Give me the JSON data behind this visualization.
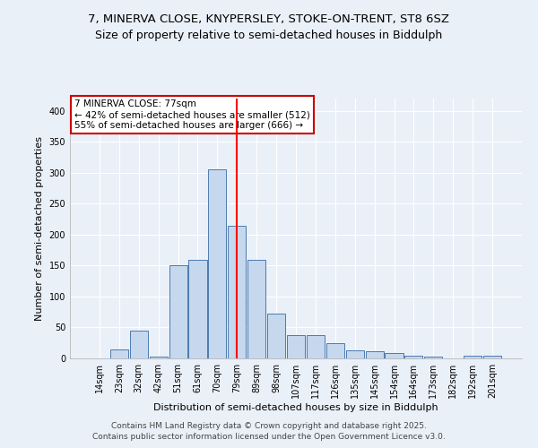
{
  "title1": "7, MINERVA CLOSE, KNYPERSLEY, STOKE-ON-TRENT, ST8 6SZ",
  "title2": "Size of property relative to semi-detached houses in Biddulph",
  "xlabel": "Distribution of semi-detached houses by size in Biddulph",
  "ylabel": "Number of semi-detached properties",
  "categories": [
    "14sqm",
    "23sqm",
    "32sqm",
    "42sqm",
    "51sqm",
    "61sqm",
    "70sqm",
    "79sqm",
    "89sqm",
    "98sqm",
    "107sqm",
    "117sqm",
    "126sqm",
    "135sqm",
    "145sqm",
    "154sqm",
    "164sqm",
    "173sqm",
    "182sqm",
    "192sqm",
    "201sqm"
  ],
  "values": [
    0,
    14,
    45,
    3,
    150,
    160,
    305,
    215,
    160,
    73,
    38,
    38,
    24,
    13,
    11,
    9,
    5,
    3,
    0,
    4,
    4
  ],
  "bar_color": "#c5d8ed",
  "bar_edge_color": "#4c7ab0",
  "red_line_x": 7.0,
  "annotation_title": "7 MINERVA CLOSE: 77sqm",
  "annotation_line1": "← 42% of semi-detached houses are smaller (512)",
  "annotation_line2": "55% of semi-detached houses are larger (666) →",
  "annotation_box_color": "#ffffff",
  "annotation_box_edge": "#cc0000",
  "footer1": "Contains HM Land Registry data © Crown copyright and database right 2025.",
  "footer2": "Contains public sector information licensed under the Open Government Licence v3.0.",
  "bg_color": "#eaf0f8",
  "plot_bg_color": "#eaf0f8",
  "ylim": [
    0,
    420
  ],
  "yticks": [
    0,
    50,
    100,
    150,
    200,
    250,
    300,
    350,
    400
  ],
  "title_fontsize": 9.5,
  "subtitle_fontsize": 9,
  "axis_label_fontsize": 8,
  "tick_fontsize": 7,
  "footer_fontsize": 6.5,
  "annot_fontsize": 7.5
}
